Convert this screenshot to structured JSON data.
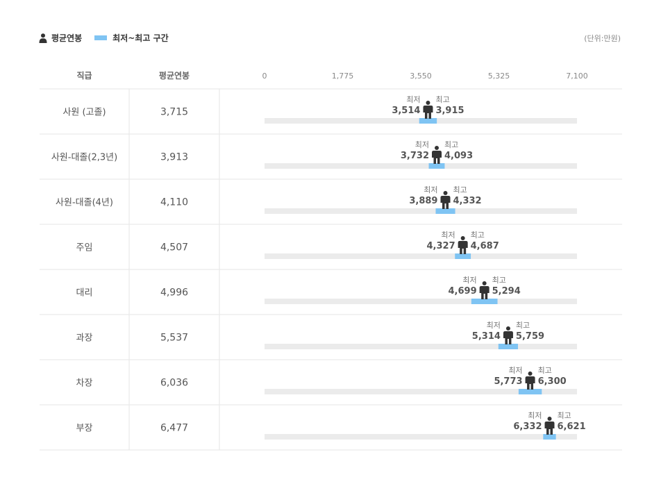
{
  "legend": {
    "person_label": "평균연봉",
    "range_label": "최저~최고 구간"
  },
  "unit_label": "(단위:만원)",
  "colors": {
    "range_bar": "#7fc4f3",
    "track": "#ebebeb",
    "person": "#333333",
    "grid_line": "#e6e6e6"
  },
  "chart_data": {
    "type": "range-bar",
    "columns": [
      "직급",
      "평균연봉"
    ],
    "x_ticks": [
      "0",
      "1,775",
      "3,550",
      "5,325",
      "7,100"
    ],
    "x_tick_values": [
      0,
      1775,
      3550,
      5325,
      7100
    ],
    "xlim": [
      0,
      7100
    ],
    "min_label": "최저",
    "max_label": "최고",
    "rows": [
      {
        "rank": "사원 (고졸)",
        "avg": 3715,
        "avg_text": "3,715",
        "min": 3514,
        "min_text": "3,514",
        "max": 3915,
        "max_text": "3,915"
      },
      {
        "rank": "사원-대졸(2,3년)",
        "avg": 3913,
        "avg_text": "3,913",
        "min": 3732,
        "min_text": "3,732",
        "max": 4093,
        "max_text": "4,093"
      },
      {
        "rank": "사원-대졸(4년)",
        "avg": 4110,
        "avg_text": "4,110",
        "min": 3889,
        "min_text": "3,889",
        "max": 4332,
        "max_text": "4,332"
      },
      {
        "rank": "주임",
        "avg": 4507,
        "avg_text": "4,507",
        "min": 4327,
        "min_text": "4,327",
        "max": 4687,
        "max_text": "4,687"
      },
      {
        "rank": "대리",
        "avg": 4996,
        "avg_text": "4,996",
        "min": 4699,
        "min_text": "4,699",
        "max": 5294,
        "max_text": "5,294"
      },
      {
        "rank": "과장",
        "avg": 5537,
        "avg_text": "5,537",
        "min": 5314,
        "min_text": "5,314",
        "max": 5759,
        "max_text": "5,759"
      },
      {
        "rank": "차장",
        "avg": 6036,
        "avg_text": "6,036",
        "min": 5773,
        "min_text": "5,773",
        "max": 6300,
        "max_text": "6,300"
      },
      {
        "rank": "부장",
        "avg": 6477,
        "avg_text": "6,477",
        "min": 6332,
        "min_text": "6,332",
        "max": 6621,
        "max_text": "6,621"
      }
    ]
  }
}
